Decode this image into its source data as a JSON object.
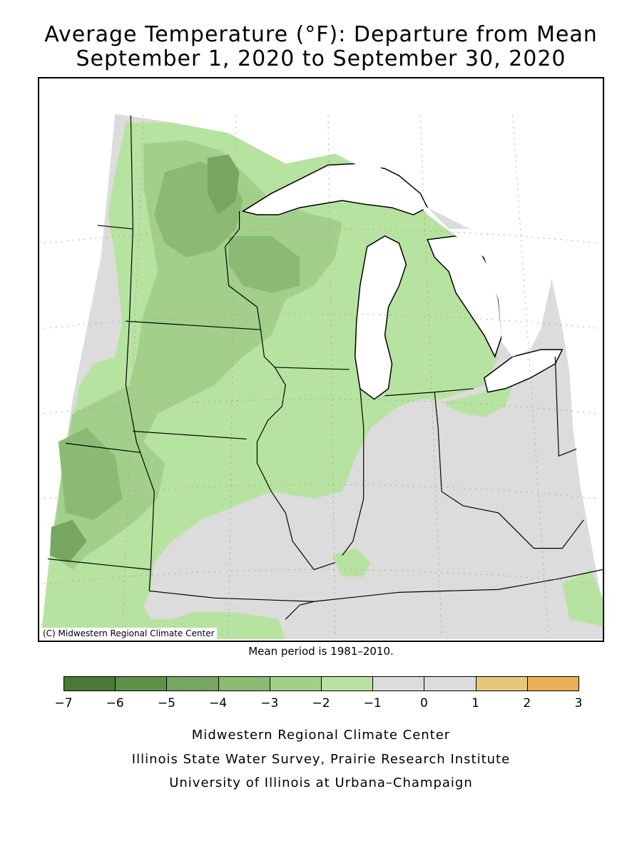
{
  "title_line1": "Average Temperature (°F): Departure from Mean",
  "title_line2": "September 1, 2020 to September 30, 2020",
  "credit": "(C) Midwestern Regional Climate Center",
  "mean_note": "Mean period is 1981–2010.",
  "legend": {
    "bins": [
      {
        "from": -7,
        "to": -6,
        "color": "#4a7a35"
      },
      {
        "from": -6,
        "to": -5,
        "color": "#5e914a"
      },
      {
        "from": -5,
        "to": -4,
        "color": "#76a65f"
      },
      {
        "from": -4,
        "to": -3,
        "color": "#8bbb73"
      },
      {
        "from": -3,
        "to": -2,
        "color": "#a2d08a"
      },
      {
        "from": -2,
        "to": -1,
        "color": "#b7e3a0"
      },
      {
        "from": -1,
        "to": 0,
        "color": "#dcdcdc"
      },
      {
        "from": 0,
        "to": 1,
        "color": "#dcdcdc"
      },
      {
        "from": 1,
        "to": 2,
        "color": "#e8c878"
      },
      {
        "from": 2,
        "to": 3,
        "color": "#e8b055"
      }
    ],
    "ticks": [
      "−7",
      "−6",
      "−5",
      "−4",
      "−3",
      "−2",
      "−1",
      "0",
      "1",
      "2",
      "3"
    ]
  },
  "footer": {
    "line1": "Midwestern Regional Climate Center",
    "line2": "Illinois State Water Survey, Prairie Research Institute",
    "line3": "University of Illinois at Urbana–Champaign"
  },
  "colors": {
    "near_normal": "#dcdcdc",
    "lake_water": "#ffffff",
    "border": "#000000"
  }
}
